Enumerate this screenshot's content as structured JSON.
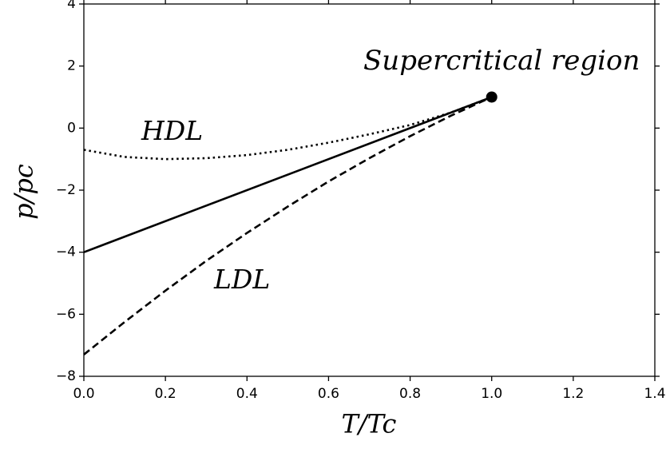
{
  "chart_data": {
    "type": "line",
    "xlabel": "T/Tc",
    "ylabel": "p/pc",
    "xlim": [
      0,
      1.4
    ],
    "ylim": [
      -8,
      4
    ],
    "xticks": [
      {
        "value": 0,
        "label": "0.0"
      },
      0.2,
      0.4,
      0.6,
      0.8,
      {
        "value": 1,
        "label": "1.0"
      },
      1.2,
      1.4
    ],
    "yticks": [
      {
        "value": -8,
        "label": "−8"
      },
      {
        "value": -6,
        "label": "−6"
      },
      {
        "value": -4,
        "label": "−4"
      },
      {
        "value": -2,
        "label": "−2"
      },
      0,
      2,
      4
    ],
    "series": [
      {
        "color": "#000000",
        "style": "solid",
        "x": [
          0,
          1
        ],
        "values": [
          -4,
          1
        ]
      },
      {
        "color": "#000000",
        "style": "dotted",
        "x": [
          0,
          0.1,
          0.2,
          0.3,
          0.4,
          0.5,
          0.6,
          0.7,
          0.8,
          0.9,
          1
        ],
        "values": [
          -0.7,
          -0.93,
          -1.0,
          -0.97,
          -0.87,
          -0.7,
          -0.47,
          -0.2,
          0.1,
          0.5,
          1.0
        ]
      },
      {
        "color": "#000000",
        "style": "dashed",
        "x": [
          0,
          0.1,
          0.2,
          0.3,
          0.4,
          0.5,
          0.6,
          0.7,
          0.8,
          0.9,
          1
        ],
        "values": [
          -7.3,
          -6.25,
          -5.24,
          -4.28,
          -3.38,
          -2.53,
          -1.72,
          -0.97,
          -0.26,
          0.4,
          1.0
        ]
      }
    ],
    "markers": {
      "color": "#000000",
      "x": [
        1
      ],
      "y": [
        1
      ]
    },
    "annotations": [
      "Supercritical region",
      "HDL",
      "LDL"
    ]
  }
}
